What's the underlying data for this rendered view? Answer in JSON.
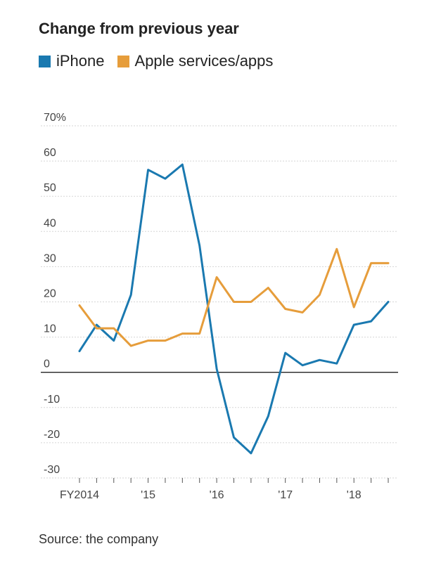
{
  "chart_data": {
    "type": "line",
    "title": "Change from previous year",
    "y_unit_suffix": "%",
    "ylim": [
      -30,
      70
    ],
    "yticks": [
      70,
      60,
      50,
      40,
      30,
      20,
      10,
      0,
      -10,
      -20,
      -30
    ],
    "ytick_labels": [
      "70%",
      "60",
      "50",
      "40",
      "30",
      "20",
      "10",
      "0",
      "-10",
      "-20",
      "-30"
    ],
    "xtick_labels": [
      {
        "label": "FY2014",
        "at": 0
      },
      {
        "label": "'15",
        "at": 4
      },
      {
        "label": "'16",
        "at": 8
      },
      {
        "label": "'17",
        "at": 12
      },
      {
        "label": "'18",
        "at": 16
      }
    ],
    "x_count": 19,
    "grid": true,
    "legend_placement": "top-left",
    "source": "Source: the company",
    "series": [
      {
        "name": "iPhone",
        "color": "#1a79b0",
        "values": [
          6,
          13.5,
          9,
          22,
          57.5,
          55,
          59,
          36,
          1,
          -18.5,
          -23,
          -12.5,
          5.5,
          2,
          3.5,
          2.5,
          13.5,
          14.5,
          20
        ]
      },
      {
        "name": "Apple services/apps",
        "color": "#e69d3b",
        "values": [
          19,
          12.5,
          12.5,
          7.5,
          9,
          9,
          11,
          11,
          27,
          20,
          20,
          24,
          18,
          17,
          22,
          35,
          18.5,
          31,
          31
        ]
      }
    ]
  }
}
